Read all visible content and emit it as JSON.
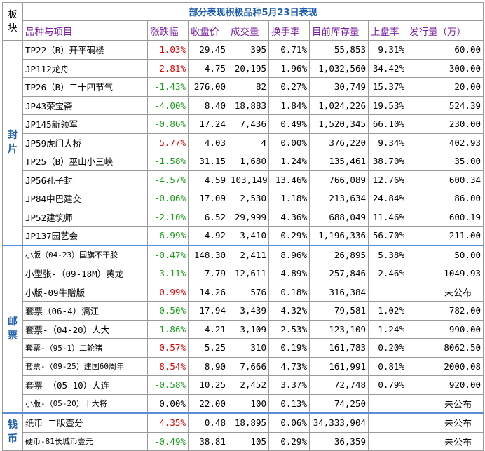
{
  "title": "部分表现积极品种5月23日表现",
  "board_header": "板块",
  "columns": [
    "品种与项目",
    "涨跌幅",
    "收盘价",
    "成交量",
    "换手率",
    "目前库存量",
    "上盘率",
    "发行量（万）"
  ],
  "groups": [
    {
      "board": "封片",
      "rows": [
        {
          "name": "TP22（B）开平硐楼",
          "change": "1.03%",
          "dir": "up",
          "close": "29.45",
          "volume": "395",
          "turnover": "0.71%",
          "stock": "55,853",
          "listing": "9.31%",
          "issue": "60.00"
        },
        {
          "name": "JP112龙舟",
          "change": "2.81%",
          "dir": "up",
          "close": "4.75",
          "volume": "20,195",
          "turnover": "1.96%",
          "stock": "1,032,560",
          "listing": "34.42%",
          "issue": "300.00"
        },
        {
          "name": "TP26（B）二十四节气",
          "change": "-1.43%",
          "dir": "down",
          "close": "276.00",
          "volume": "82",
          "turnover": "0.27%",
          "stock": "30,749",
          "listing": "15.37%",
          "issue": "20.00"
        },
        {
          "name": "JP43荣宝斋",
          "change": "-4.00%",
          "dir": "down",
          "close": "8.40",
          "volume": "18,883",
          "turnover": "1.84%",
          "stock": "1,024,226",
          "listing": "19.53%",
          "issue": "524.39"
        },
        {
          "name": "JP145新领军",
          "change": "-0.86%",
          "dir": "down",
          "close": "17.24",
          "volume": "7,436",
          "turnover": "0.49%",
          "stock": "1,520,345",
          "listing": "66.10%",
          "issue": "230.00"
        },
        {
          "name": "JP59虎门大桥",
          "change": "5.77%",
          "dir": "up",
          "close": "4.03",
          "volume": "4",
          "turnover": "0.00%",
          "stock": "376,220",
          "listing": "9.34%",
          "issue": "402.93"
        },
        {
          "name": "TP25（B）巫山小三峡",
          "change": "-1.58%",
          "dir": "down",
          "close": "31.15",
          "volume": "1,680",
          "turnover": "1.24%",
          "stock": "135,461",
          "listing": "38.70%",
          "issue": "35.00"
        },
        {
          "name": "JP56孔子封",
          "change": "-4.57%",
          "dir": "down",
          "close": "4.59",
          "volume": "103,149",
          "turnover": "13.46%",
          "stock": "766,089",
          "listing": "12.76%",
          "issue": "600.34"
        },
        {
          "name": "JP84中巴建交",
          "change": "-0.06%",
          "dir": "down",
          "close": "17.09",
          "volume": "2,530",
          "turnover": "1.18%",
          "stock": "213,634",
          "listing": "24.84%",
          "issue": "86.00"
        },
        {
          "name": "JP52建筑师",
          "change": "-2.10%",
          "dir": "down",
          "close": "6.52",
          "volume": "29,999",
          "turnover": "4.36%",
          "stock": "688,049",
          "listing": "11.46%",
          "issue": "600.19"
        },
        {
          "name": "JP137园艺会",
          "change": "-6.99%",
          "dir": "down",
          "close": "4.92",
          "volume": "3,410",
          "turnover": "0.29%",
          "stock": "1,196,336",
          "listing": "56.70%",
          "issue": "211.00"
        }
      ]
    },
    {
      "board": "邮票",
      "rows": [
        {
          "name": "小版（04-23）国旗不干胶",
          "small": true,
          "change": "-0.47%",
          "dir": "down",
          "close": "148.30",
          "volume": "2,411",
          "turnover": "8.96%",
          "stock": "26,895",
          "listing": "5.38%",
          "issue": "50.00"
        },
        {
          "name": "小型张-（09-18M）黄龙",
          "change": "-3.11%",
          "dir": "down",
          "close": "7.79",
          "volume": "12,611",
          "turnover": "4.89%",
          "stock": "257,846",
          "listing": "2.46%",
          "issue": "1049.93"
        },
        {
          "name": "小版-09牛赠版",
          "change": "0.99%",
          "dir": "up",
          "close": "14.26",
          "volume": "576",
          "turnover": "0.18%",
          "stock": "316,384",
          "listing": "",
          "issue": "未公布",
          "unpub": true
        },
        {
          "name": "套票（06-4）漓江",
          "change": "-0.50%",
          "dir": "down",
          "close": "17.94",
          "volume": "3,439",
          "turnover": "4.32%",
          "stock": "79,581",
          "listing": "1.02%",
          "issue": "782.00"
        },
        {
          "name": "套票-（04-20）人大",
          "change": "-1.86%",
          "dir": "down",
          "close": "4.21",
          "volume": "3,109",
          "turnover": "2.53%",
          "stock": "123,109",
          "listing": "1.24%",
          "issue": "990.00"
        },
        {
          "name": "套票-（95-1）二轮猪",
          "small": true,
          "change": "0.57%",
          "dir": "up",
          "close": "5.25",
          "volume": "310",
          "turnover": "0.19%",
          "stock": "161,783",
          "listing": "0.20%",
          "issue": "8062.50"
        },
        {
          "name": "套票-（09-25）建国60周年",
          "small": true,
          "change": "8.54%",
          "dir": "up",
          "close": "8.90",
          "volume": "7,666",
          "turnover": "4.73%",
          "stock": "161,991",
          "listing": "0.81%",
          "issue": "2000.08"
        },
        {
          "name": "套票-（05-10）大连",
          "change": "-0.58%",
          "dir": "down",
          "close": "10.25",
          "volume": "2,452",
          "turnover": "3.37%",
          "stock": "72,748",
          "listing": "0.79%",
          "issue": "920.00"
        },
        {
          "name": "小版-（05-20）十大将",
          "small": true,
          "change": "0.00%",
          "dir": "flat",
          "close": "22.00",
          "volume": "100",
          "turnover": "0.13%",
          "stock": "74,250",
          "listing": "",
          "issue": "未公布",
          "unpub": true
        }
      ]
    },
    {
      "board": "钱币",
      "rows": [
        {
          "name": "纸币-二版壹分",
          "change": "4.35%",
          "dir": "up",
          "close": "0.48",
          "volume": "18,895",
          "turnover": "0.06%",
          "stock": "34,333,904",
          "listing": "",
          "issue": "未公布",
          "unpub": true
        },
        {
          "name": "硬币-81长城币壹元",
          "small": true,
          "change": "-0.49%",
          "dir": "down",
          "close": "38.81",
          "volume": "105",
          "turnover": "0.29%",
          "stock": "36,359",
          "listing": "",
          "issue": "未公布",
          "unpub": true
        }
      ]
    }
  ],
  "colors": {
    "title": "#1f5fb0",
    "header": "#7a1fa2",
    "up": "#e60000",
    "down": "#1a9f1a",
    "separator": "#5a8ed8"
  }
}
